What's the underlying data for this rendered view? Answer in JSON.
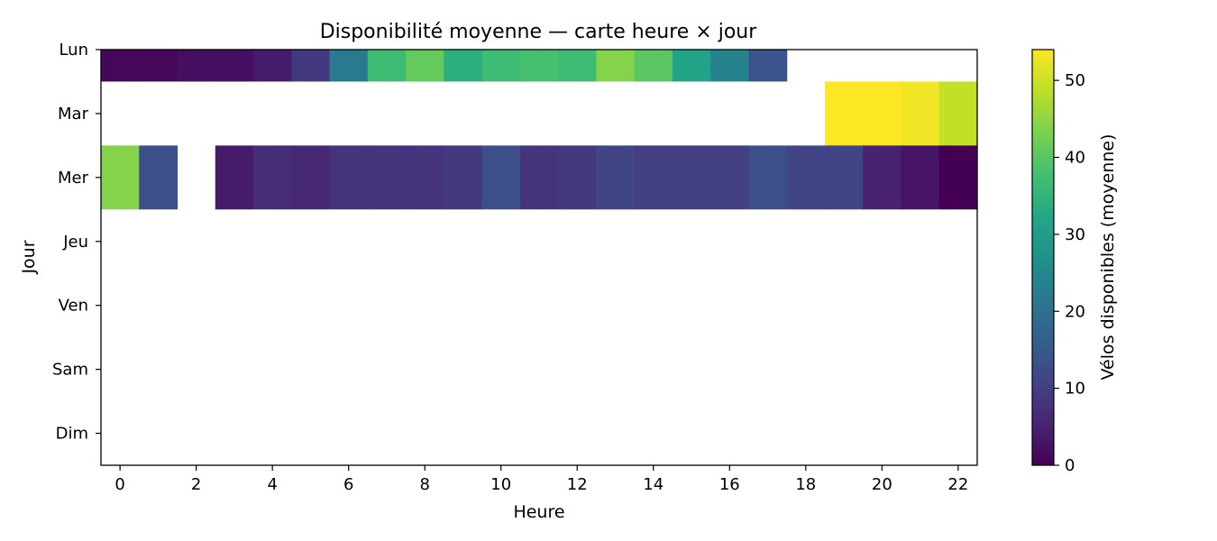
{
  "chart_data": {
    "type": "heatmap",
    "title": "Disponibilité moyenne — carte heure × jour",
    "xlabel": "Heure",
    "ylabel": "Jour",
    "colorbar_label": "Vélos disponibles (moyenne)",
    "colormap": "viridis",
    "x": [
      0,
      1,
      2,
      3,
      4,
      5,
      6,
      7,
      8,
      9,
      10,
      11,
      12,
      13,
      14,
      15,
      16,
      17,
      18,
      19,
      20,
      21,
      22
    ],
    "x_ticks": [
      "0",
      "2",
      "4",
      "6",
      "8",
      "10",
      "12",
      "14",
      "16",
      "18",
      "20",
      "22"
    ],
    "y": [
      "Lun",
      "Mar",
      "Mer",
      "Jeu",
      "Ven",
      "Sam",
      "Dim"
    ],
    "color_range": [
      0,
      54
    ],
    "colorbar_ticks": [
      "0",
      "10",
      "20",
      "30",
      "40",
      "50"
    ],
    "values": [
      [
        1,
        1,
        2,
        2,
        4,
        9,
        22,
        37,
        41,
        34,
        37,
        38,
        37,
        44,
        40,
        31,
        24,
        14,
        null,
        null,
        null,
        null,
        null
      ],
      [
        null,
        null,
        null,
        null,
        null,
        null,
        null,
        null,
        null,
        null,
        null,
        null,
        null,
        null,
        null,
        null,
        null,
        null,
        null,
        54,
        54,
        53,
        49
      ],
      [
        44,
        13,
        null,
        4,
        7,
        6,
        8,
        8,
        8,
        9,
        13,
        8,
        9,
        11,
        10,
        10,
        10,
        13,
        11,
        11,
        5,
        3,
        0
      ],
      [
        null,
        null,
        null,
        null,
        null,
        null,
        null,
        null,
        null,
        null,
        null,
        null,
        null,
        null,
        null,
        null,
        null,
        null,
        null,
        null,
        null,
        null,
        null
      ],
      [
        null,
        null,
        null,
        null,
        null,
        null,
        null,
        null,
        null,
        null,
        null,
        null,
        null,
        null,
        null,
        null,
        null,
        null,
        null,
        null,
        null,
        null,
        null
      ],
      [
        null,
        null,
        null,
        null,
        null,
        null,
        null,
        null,
        null,
        null,
        null,
        null,
        null,
        null,
        null,
        null,
        null,
        null,
        null,
        null,
        null,
        null,
        null
      ],
      [
        null,
        null,
        null,
        null,
        null,
        null,
        null,
        null,
        null,
        null,
        null,
        null,
        null,
        null,
        null,
        null,
        null,
        null,
        null,
        null,
        null,
        null,
        null
      ]
    ]
  }
}
